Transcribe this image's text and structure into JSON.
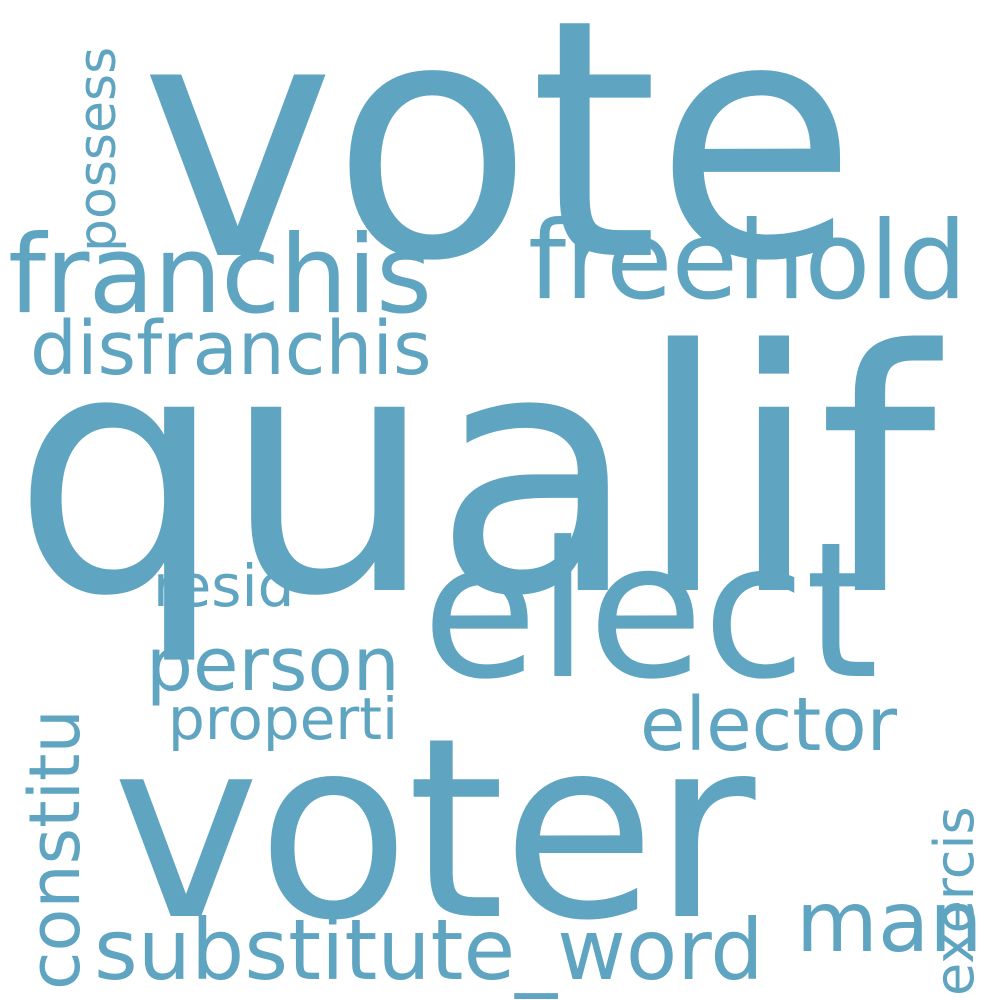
{
  "wordcloud": {
    "color": "#5fa4c0",
    "background": "#ffffff",
    "words": {
      "vote": "vote",
      "qualif": "qualif",
      "franchis": "franchis",
      "freehold": "freehold",
      "disfranchis": "disfranchis",
      "possess": "possess",
      "elect": "elect",
      "voter": "voter",
      "resid": "resid",
      "person": "person",
      "properti": "properti",
      "elector": "elector",
      "constitu": "constitu",
      "substitute_word": "substitute_word",
      "man": "man",
      "exercis": "exercis"
    }
  }
}
